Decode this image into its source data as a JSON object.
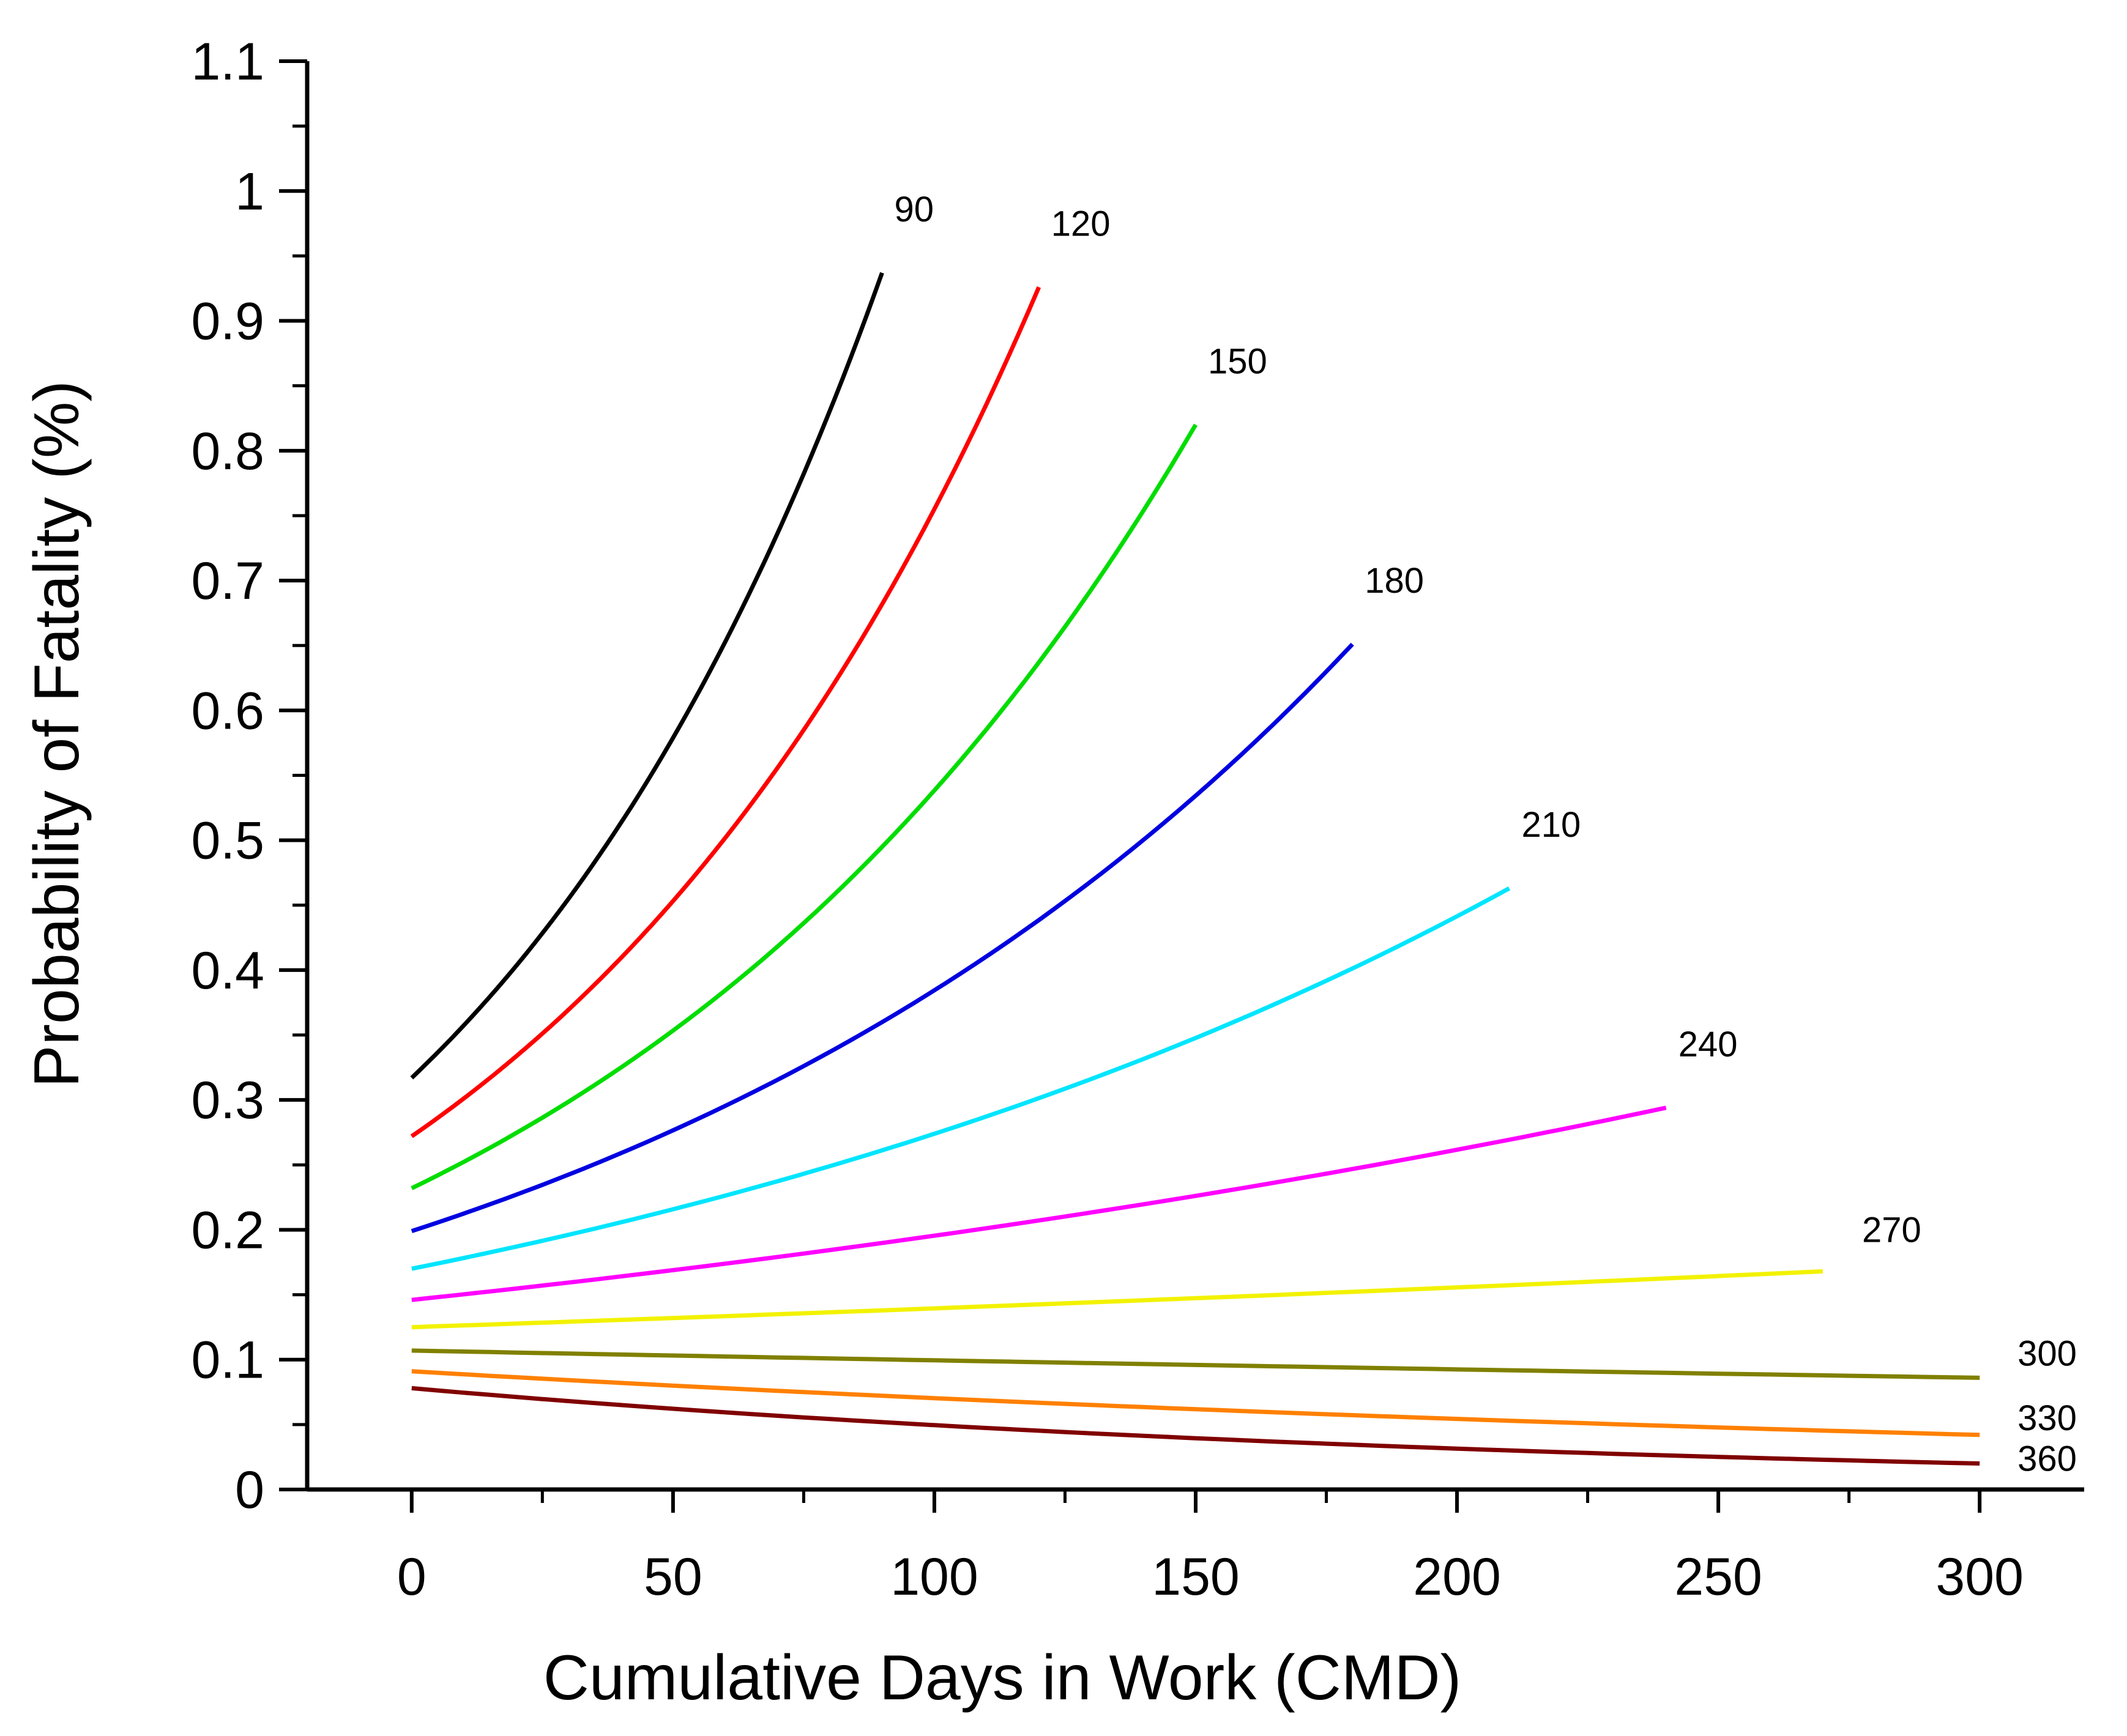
{
  "chart_data": {
    "type": "line",
    "title": "",
    "xlabel": "Cumulative Days in Work (CMD)",
    "ylabel": "Probability of Fatality (%)",
    "xlim": [
      -20,
      320
    ],
    "ylim": [
      0,
      1.1
    ],
    "xticks": [
      0,
      50,
      100,
      150,
      200,
      250,
      300
    ],
    "yticks": [
      0,
      0.1,
      0.2,
      0.3,
      0.4,
      0.5,
      0.6,
      0.7,
      0.8,
      0.9,
      1,
      1.1
    ],
    "xtick_labels": [
      "0",
      "50",
      "100",
      "150",
      "200",
      "250",
      "300"
    ],
    "ytick_labels": [
      "0",
      "0.1",
      "0.2",
      "0.3",
      "0.4",
      "0.5",
      "0.6",
      "0.7",
      "0.8",
      "0.9",
      "1",
      "1.1"
    ],
    "grid": false,
    "series": [
      {
        "name": "90",
        "color": "#000000",
        "x_start": 0,
        "x_end": 90,
        "y_start": 0.317,
        "y_end": 0.937
      },
      {
        "name": "120",
        "color": "#ff0000",
        "x_start": 0,
        "x_end": 120,
        "y_start": 0.272,
        "y_end": 0.926
      },
      {
        "name": "150",
        "color": "#00dd00",
        "x_start": 0,
        "x_end": 150,
        "y_start": 0.232,
        "y_end": 0.82
      },
      {
        "name": "180",
        "color": "#0000e0",
        "x_start": 0,
        "x_end": 180,
        "y_start": 0.199,
        "y_end": 0.651
      },
      {
        "name": "210",
        "color": "#00e5ff",
        "x_start": 0,
        "x_end": 210,
        "y_start": 0.17,
        "y_end": 0.463
      },
      {
        "name": "240",
        "color": "#ff00ff",
        "x_start": 0,
        "x_end": 240,
        "y_start": 0.146,
        "y_end": 0.294
      },
      {
        "name": "270",
        "color": "#f2f200",
        "x_start": 0,
        "x_end": 270,
        "y_start": 0.125,
        "y_end": 0.168
      },
      {
        "name": "300",
        "color": "#808000",
        "x_start": 0,
        "x_end": 300,
        "y_start": 0.107,
        "y_end": 0.086
      },
      {
        "name": "330",
        "color": "#ff8000",
        "x_start": 0,
        "x_end": 300,
        "y_start": 0.091,
        "y_end": 0.042
      },
      {
        "name": "360",
        "color": "#800000",
        "x_start": 0,
        "x_end": 300,
        "y_start": 0.078,
        "y_end": 0.02
      }
    ]
  }
}
